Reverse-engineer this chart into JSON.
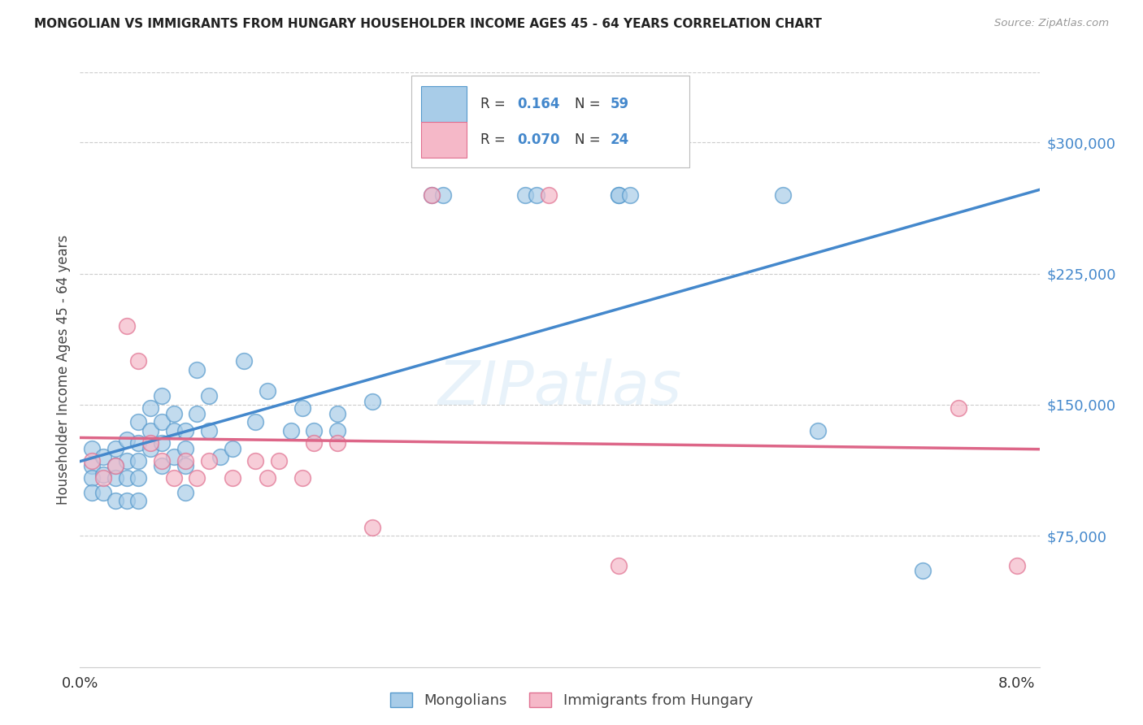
{
  "title": "MONGOLIAN VS IMMIGRANTS FROM HUNGARY HOUSEHOLDER INCOME AGES 45 - 64 YEARS CORRELATION CHART",
  "source": "Source: ZipAtlas.com",
  "ylabel": "Householder Income Ages 45 - 64 years",
  "legend_mongolians": "Mongolians",
  "legend_hungary": "Immigrants from Hungary",
  "r_mongolian": 0.164,
  "n_mongolian": 59,
  "r_hungary": 0.07,
  "n_hungary": 24,
  "color_blue_fill": "#a8cce8",
  "color_pink_fill": "#f5b8c8",
  "color_blue_edge": "#5599cc",
  "color_pink_edge": "#e07090",
  "color_blue_line": "#4488cc",
  "color_pink_line": "#dd6688",
  "color_blue_text": "#4488cc",
  "ytick_values": [
    75000,
    150000,
    225000,
    300000
  ],
  "ylim": [
    0,
    340000
  ],
  "xlim_max": 0.082,
  "mongolian_x": [
    0.001,
    0.001,
    0.001,
    0.001,
    0.002,
    0.002,
    0.002,
    0.003,
    0.003,
    0.003,
    0.003,
    0.004,
    0.004,
    0.004,
    0.004,
    0.005,
    0.005,
    0.005,
    0.005,
    0.005,
    0.006,
    0.006,
    0.006,
    0.007,
    0.007,
    0.007,
    0.007,
    0.008,
    0.008,
    0.008,
    0.009,
    0.009,
    0.009,
    0.009,
    0.01,
    0.01,
    0.011,
    0.011,
    0.012,
    0.013,
    0.014,
    0.015,
    0.016,
    0.018,
    0.019,
    0.02,
    0.022,
    0.022,
    0.025,
    0.03,
    0.031,
    0.038,
    0.039,
    0.046,
    0.046,
    0.047,
    0.06,
    0.063,
    0.072
  ],
  "mongolian_y": [
    125000,
    115000,
    108000,
    100000,
    120000,
    110000,
    100000,
    125000,
    115000,
    108000,
    95000,
    130000,
    118000,
    108000,
    95000,
    140000,
    128000,
    118000,
    108000,
    95000,
    148000,
    135000,
    125000,
    155000,
    140000,
    128000,
    115000,
    145000,
    135000,
    120000,
    135000,
    125000,
    115000,
    100000,
    170000,
    145000,
    155000,
    135000,
    120000,
    125000,
    175000,
    140000,
    158000,
    135000,
    148000,
    135000,
    135000,
    145000,
    152000,
    270000,
    270000,
    270000,
    270000,
    270000,
    270000,
    270000,
    270000,
    135000,
    55000
  ],
  "hungary_x": [
    0.001,
    0.002,
    0.003,
    0.004,
    0.005,
    0.006,
    0.007,
    0.008,
    0.009,
    0.01,
    0.011,
    0.013,
    0.015,
    0.016,
    0.017,
    0.019,
    0.02,
    0.022,
    0.025,
    0.03,
    0.04,
    0.046,
    0.075,
    0.08
  ],
  "hungary_y": [
    118000,
    108000,
    115000,
    195000,
    175000,
    128000,
    118000,
    108000,
    118000,
    108000,
    118000,
    108000,
    118000,
    108000,
    118000,
    108000,
    128000,
    128000,
    80000,
    270000,
    270000,
    58000,
    148000,
    58000
  ]
}
